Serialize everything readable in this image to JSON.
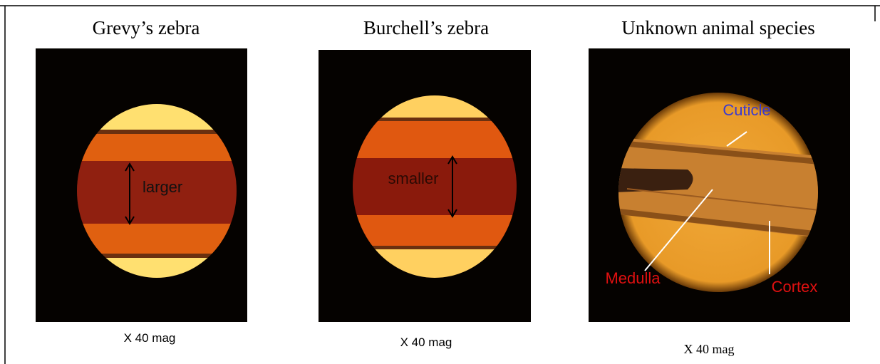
{
  "panels": [
    {
      "title": "Grevy’s zebra",
      "labels": [
        "larger"
      ],
      "caption": "X 40 mag"
    },
    {
      "title": "Burchell’s zebra",
      "labels": [
        "smaller"
      ],
      "caption": "X 40 mag"
    },
    {
      "title": "Unknown animal species",
      "labels": [
        "Cuticle",
        "Medulla",
        "Cortex"
      ],
      "caption": "X 40 mag"
    }
  ]
}
